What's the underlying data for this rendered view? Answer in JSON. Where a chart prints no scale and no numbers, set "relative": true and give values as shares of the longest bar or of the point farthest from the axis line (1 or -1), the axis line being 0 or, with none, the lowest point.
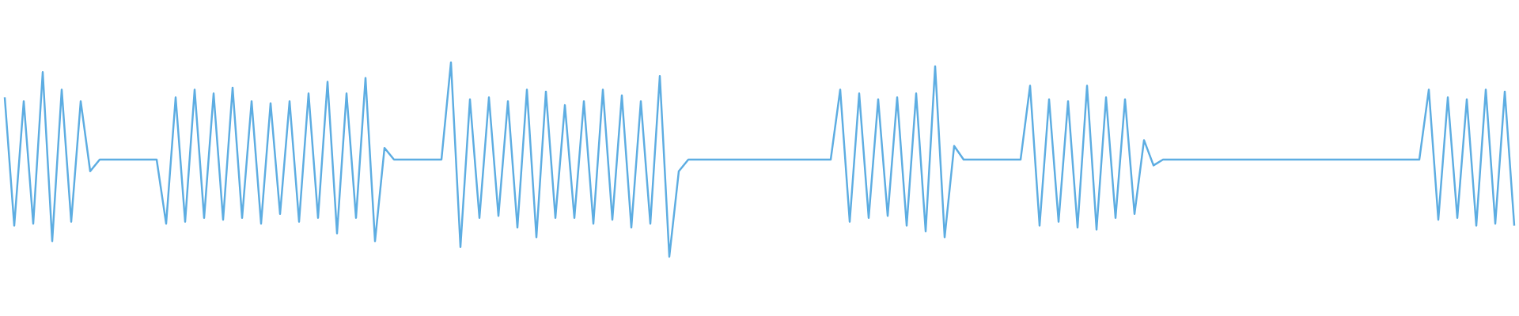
{
  "chart_data": {
    "type": "line",
    "relative": true,
    "categories": [
      null,
      null,
      null,
      null,
      null,
      null,
      null,
      null,
      null,
      null,
      null,
      null,
      null,
      null,
      null,
      null,
      null,
      null,
      null,
      null,
      null,
      null,
      null,
      null,
      null,
      null,
      null,
      null,
      null,
      null,
      null,
      null,
      null,
      null,
      null,
      null,
      null,
      null,
      null,
      null,
      null,
      null,
      null,
      null,
      null,
      null,
      null,
      null,
      null,
      null,
      null,
      null,
      null,
      null,
      null,
      null,
      null,
      null,
      null,
      null,
      null,
      null,
      null,
      null,
      null,
      null,
      null,
      null,
      null,
      null,
      null,
      null,
      null,
      null,
      null,
      null,
      null,
      null,
      null,
      null,
      null,
      null,
      null,
      null,
      null,
      null,
      null,
      null,
      null,
      null,
      null,
      null,
      null,
      null,
      null,
      null,
      null,
      null,
      null,
      null,
      null,
      null,
      null,
      null,
      null,
      null,
      null,
      null,
      null,
      null,
      null,
      null,
      null,
      null,
      null,
      null,
      null,
      null,
      null,
      null,
      null,
      null,
      null,
      null,
      null,
      null,
      null,
      null,
      null,
      null,
      null,
      null,
      null,
      null,
      null,
      null,
      null,
      null,
      null,
      null,
      null,
      null,
      null,
      null,
      null,
      null,
      null,
      null,
      null,
      null,
      null,
      null,
      null,
      null,
      null,
      null,
      null,
      null,
      null,
      null
    ],
    "series": [
      {
        "color": "#5dade2",
        "values": [
          0.82,
          0.16,
          0.8,
          0.17,
          0.95,
          0.08,
          0.86,
          0.18,
          0.8,
          0.44,
          0.5,
          0.5,
          0.5,
          0.5,
          0.5,
          0.5,
          0.5,
          0.17,
          0.82,
          0.18,
          0.86,
          0.2,
          0.84,
          0.19,
          0.87,
          0.2,
          0.8,
          0.17,
          0.79,
          0.22,
          0.8,
          0.18,
          0.84,
          0.2,
          0.9,
          0.12,
          0.84,
          0.2,
          0.92,
          0.08,
          0.56,
          0.5,
          0.5,
          0.5,
          0.5,
          0.5,
          0.5,
          1.0,
          0.05,
          0.81,
          0.2,
          0.82,
          0.21,
          0.8,
          0.15,
          0.86,
          0.1,
          0.85,
          0.2,
          0.78,
          0.2,
          0.8,
          0.17,
          0.86,
          0.19,
          0.83,
          0.15,
          0.8,
          0.17,
          0.93,
          0.0,
          0.44,
          0.5,
          0.5,
          0.5,
          0.5,
          0.5,
          0.5,
          0.5,
          0.5,
          0.5,
          0.5,
          0.5,
          0.5,
          0.5,
          0.5,
          0.5,
          0.5,
          0.86,
          0.18,
          0.84,
          0.2,
          0.81,
          0.21,
          0.82,
          0.16,
          0.84,
          0.13,
          0.98,
          0.1,
          0.57,
          0.5,
          0.5,
          0.5,
          0.5,
          0.5,
          0.5,
          0.5,
          0.88,
          0.16,
          0.81,
          0.18,
          0.8,
          0.15,
          0.88,
          0.14,
          0.82,
          0.2,
          0.81,
          0.22,
          0.6,
          0.47,
          0.5,
          0.5,
          0.5,
          0.5,
          0.5,
          0.5,
          0.5,
          0.5,
          0.5,
          0.5,
          0.5,
          0.5,
          0.5,
          0.5,
          0.5,
          0.5,
          0.5,
          0.5,
          0.5,
          0.5,
          0.5,
          0.5,
          0.5,
          0.5,
          0.5,
          0.5,
          0.5,
          0.5,
          0.86,
          0.19,
          0.82,
          0.2,
          0.81,
          0.16,
          0.86,
          0.17,
          0.85,
          0.16
        ]
      }
    ]
  }
}
